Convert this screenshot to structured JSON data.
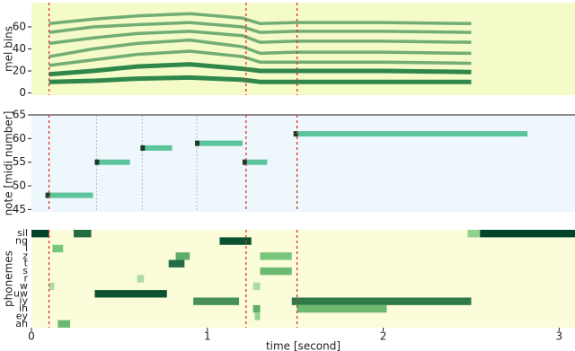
{
  "chart_data": [
    {
      "type": "line",
      "ylabel": "mel bins",
      "xlim": [
        0,
        3.09
      ],
      "ylim": [
        -2,
        82
      ],
      "yticks": [
        0,
        20,
        40,
        60
      ],
      "color": "#1b7a3d",
      "vlines": [
        0.1,
        1.22,
        1.51
      ],
      "vline_color": "#e03030",
      "x": [
        0.1,
        0.35,
        0.6,
        0.9,
        1.2,
        1.3,
        1.5,
        2.0,
        2.5
      ],
      "series": [
        {
          "values": [
            10,
            11,
            13,
            14,
            12,
            10,
            10,
            10,
            10
          ]
        },
        {
          "values": [
            17,
            20,
            24,
            26,
            22,
            20,
            20,
            20,
            19
          ]
        },
        {
          "values": [
            25,
            30,
            35,
            38,
            33,
            28,
            28,
            28,
            27
          ]
        },
        {
          "values": [
            33,
            40,
            45,
            48,
            42,
            36,
            37,
            37,
            36
          ]
        },
        {
          "values": [
            45,
            50,
            54,
            56,
            52,
            46,
            47,
            47,
            46
          ]
        },
        {
          "values": [
            55,
            60,
            62,
            64,
            60,
            55,
            56,
            56,
            55
          ]
        },
        {
          "values": [
            63,
            67,
            70,
            72,
            68,
            63,
            64,
            64,
            63
          ]
        }
      ]
    },
    {
      "type": "segments",
      "ylabel": "note [midi number]",
      "xlim": [
        0,
        3.09
      ],
      "ylim": [
        44.5,
        65
      ],
      "yticks": [
        45,
        50,
        55,
        60,
        65
      ],
      "color": "#5cc49c",
      "marker_color": "#1d3b2c",
      "vlines": [
        0.37,
        0.63,
        0.94
      ],
      "starts": [
        0.09,
        0.37,
        0.63,
        0.94,
        1.21,
        1.5
      ],
      "ends": [
        0.35,
        0.56,
        0.8,
        1.2,
        1.34,
        2.82
      ],
      "values": [
        48,
        55,
        58,
        59,
        55,
        61
      ]
    },
    {
      "type": "heatmap",
      "ylabel": "phonemes",
      "xlabel": "time [second]",
      "xlim": [
        0,
        3.09
      ],
      "xticks": [
        0,
        1,
        2,
        3
      ],
      "series": [
        {
          "name": "sil",
          "segments": [
            [
              0,
              0.1,
              1
            ],
            [
              0.24,
              0.34,
              0.85
            ],
            [
              2.48,
              2.55,
              0.4
            ],
            [
              2.55,
              3.09,
              1
            ]
          ]
        },
        {
          "name": "ng",
          "segments": [
            [
              1.07,
              1.25,
              0.95
            ]
          ]
        },
        {
          "name": "l",
          "segments": [
            [
              0.12,
              0.18,
              0.5
            ]
          ]
        },
        {
          "name": "z",
          "segments": [
            [
              0.82,
              0.9,
              0.6
            ],
            [
              1.3,
              1.48,
              0.5
            ]
          ]
        },
        {
          "name": "t",
          "segments": [
            [
              0.78,
              0.87,
              0.85
            ]
          ]
        },
        {
          "name": "s",
          "segments": [
            [
              1.3,
              1.48,
              0.55
            ]
          ]
        },
        {
          "name": "r",
          "segments": [
            [
              0.6,
              0.64,
              0.3
            ]
          ]
        },
        {
          "name": "w",
          "segments": [
            [
              0.1,
              0.13,
              0.3
            ],
            [
              1.26,
              1.3,
              0.3
            ]
          ]
        },
        {
          "name": "uw",
          "segments": [
            [
              0.36,
              0.77,
              0.95
            ]
          ]
        },
        {
          "name": "iy",
          "segments": [
            [
              0.92,
              1.18,
              0.7
            ],
            [
              1.48,
              2.5,
              0.8
            ]
          ]
        },
        {
          "name": "ih",
          "segments": [
            [
              1.26,
              1.3,
              0.6
            ],
            [
              1.51,
              2.02,
              0.55
            ]
          ]
        },
        {
          "name": "ey",
          "segments": [
            [
              1.27,
              1.3,
              0.4
            ]
          ]
        },
        {
          "name": "ah",
          "segments": [
            [
              0.15,
              0.22,
              0.55
            ]
          ]
        }
      ]
    }
  ]
}
